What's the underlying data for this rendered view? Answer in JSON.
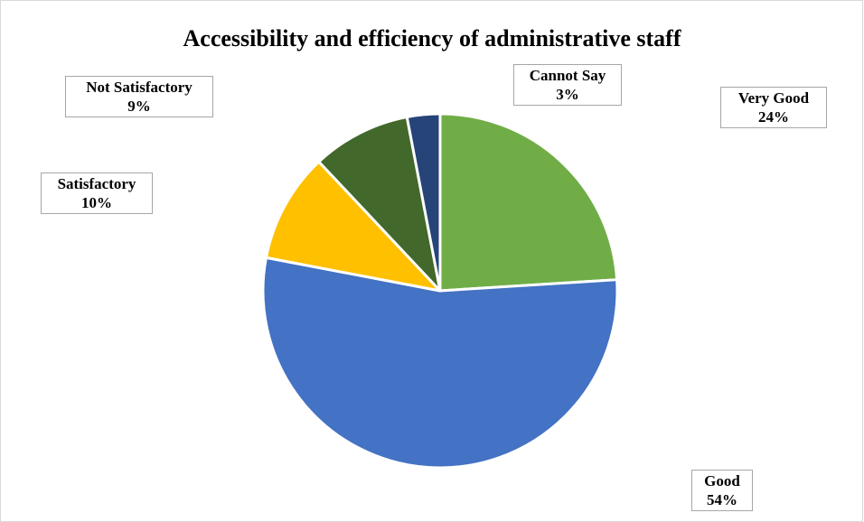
{
  "chart_data": {
    "type": "pie",
    "title": "Accessibility and efficiency of administrative staff",
    "slices": [
      {
        "label": "Very Good",
        "value": 24,
        "pct_label": "24%",
        "color": "#70ad47"
      },
      {
        "label": "Good",
        "value": 54,
        "pct_label": "54%",
        "color": "#4472c4"
      },
      {
        "label": "Satisfactory",
        "value": 10,
        "pct_label": "10%",
        "color": "#ffc000"
      },
      {
        "label": "Not Satisfactory",
        "value": 9,
        "pct_label": "9%",
        "color": "#43682b"
      },
      {
        "label": "Cannot Say",
        "value": 3,
        "pct_label": "3%",
        "color": "#264478"
      }
    ],
    "start": "12 o'clock",
    "direction": "clockwise",
    "legend": "none"
  }
}
